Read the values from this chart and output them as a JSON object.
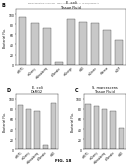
{
  "fig_label": "FIG. 18",
  "header_text": "Human Applications Submissions    Sep 22, 2013   Sheet 13 of 17   US 2014/0045183 A1",
  "top_chart": {
    "panel_label": "B",
    "title_line1": "E. coli",
    "title_line2": "Tissue Fluid",
    "categories": [
      "mRFP1",
      "mCherry",
      "mStrawberry",
      "tdTomato",
      "mOrange",
      "mKO",
      "mCitrine",
      "mVenus",
      "mCFP"
    ],
    "values": [
      95,
      82,
      72,
      5,
      90,
      85,
      83,
      68,
      48
    ],
    "bar_color": "#c8c8c8",
    "ylabel": "Bacterial Flu.",
    "ylim": [
      0,
      110
    ],
    "yticks": [
      0,
      20,
      40,
      60,
      80,
      100
    ]
  },
  "bottom_left": {
    "panel_label": "D",
    "title_line1": "E. coli",
    "title_line2": "DsRG2",
    "categories": [
      "mRFP1",
      "mCherry",
      "mStrawberry",
      "tdTomato",
      "mKO"
    ],
    "values": [
      88,
      80,
      75,
      8,
      92
    ],
    "bar_color": "#c8c8c8",
    "ylabel": "Bacterial Flu.",
    "ylim": [
      0,
      110
    ],
    "yticks": [
      0,
      20,
      40,
      60,
      80,
      100
    ]
  },
  "bottom_right": {
    "panel_label": "C",
    "title_line1": "S. marcescens",
    "title_line2": "Tissue Fluid",
    "categories": [
      "mRFP1",
      "mCherry",
      "mStrawberry",
      "tdTomato",
      "mKO"
    ],
    "values": [
      90,
      85,
      80,
      75,
      42
    ],
    "bar_color": "#c8c8c8",
    "ylabel": "Bacterial Flu.",
    "ylim": [
      0,
      110
    ],
    "yticks": [
      0,
      20,
      40,
      60,
      80,
      100
    ]
  },
  "background_color": "#ffffff"
}
